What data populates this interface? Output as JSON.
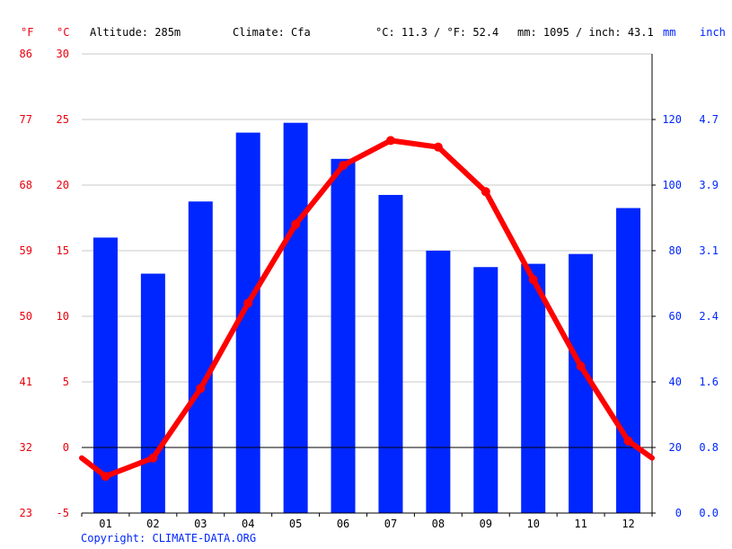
{
  "header": {
    "unit_f": "°F",
    "unit_c": "°C",
    "altitude": "Altitude: 285m",
    "climate": "Climate: Cfa",
    "avg_temp": "°C: 11.3 / °F: 52.4",
    "precip_total": "mm: 1095 / inch: 43.1",
    "unit_mm": "mm",
    "unit_inch": "inch"
  },
  "copyright": "Copyright: CLIMATE-DATA.ORG",
  "colors": {
    "bars": "#0026ff",
    "temperature_line": "#ff0000",
    "axis_red": "#e8000d",
    "axis_blue": "#0026ff",
    "grid": "#c8c8c8"
  },
  "chart_data": {
    "type": "bar",
    "categories": [
      "01",
      "02",
      "03",
      "04",
      "05",
      "06",
      "07",
      "08",
      "09",
      "10",
      "11",
      "12"
    ],
    "series": [
      {
        "type": "bar",
        "axis": "right",
        "values": [
          84,
          73,
          95,
          116,
          119,
          108,
          97,
          80,
          75,
          76,
          79,
          93
        ]
      },
      {
        "type": "line",
        "axis": "left",
        "values": [
          -2.2,
          -0.8,
          4.5,
          11.0,
          17.0,
          21.5,
          23.4,
          22.9,
          19.5,
          12.8,
          6.2,
          0.5
        ]
      }
    ],
    "y_left_celsius": {
      "ylim": [
        -5,
        30
      ],
      "ticks": [
        "-5",
        "0",
        "5",
        "10",
        "15",
        "20",
        "25",
        "30"
      ]
    },
    "y_left_fahrenheit": {
      "ticks": [
        "23",
        "32",
        "41",
        "50",
        "59",
        "68",
        "77",
        "86"
      ]
    },
    "y_right_mm": {
      "ylim": [
        0,
        140
      ],
      "ticks": [
        "0",
        "20",
        "40",
        "60",
        "80",
        "100",
        "120"
      ]
    },
    "y_right_inch": {
      "ticks": [
        "0.0",
        "0.8",
        "1.6",
        "2.4",
        "3.1",
        "3.9",
        "4.7"
      ]
    },
    "line_edge_values": {
      "start": -0.8,
      "end": -0.8
    },
    "grid": true
  }
}
